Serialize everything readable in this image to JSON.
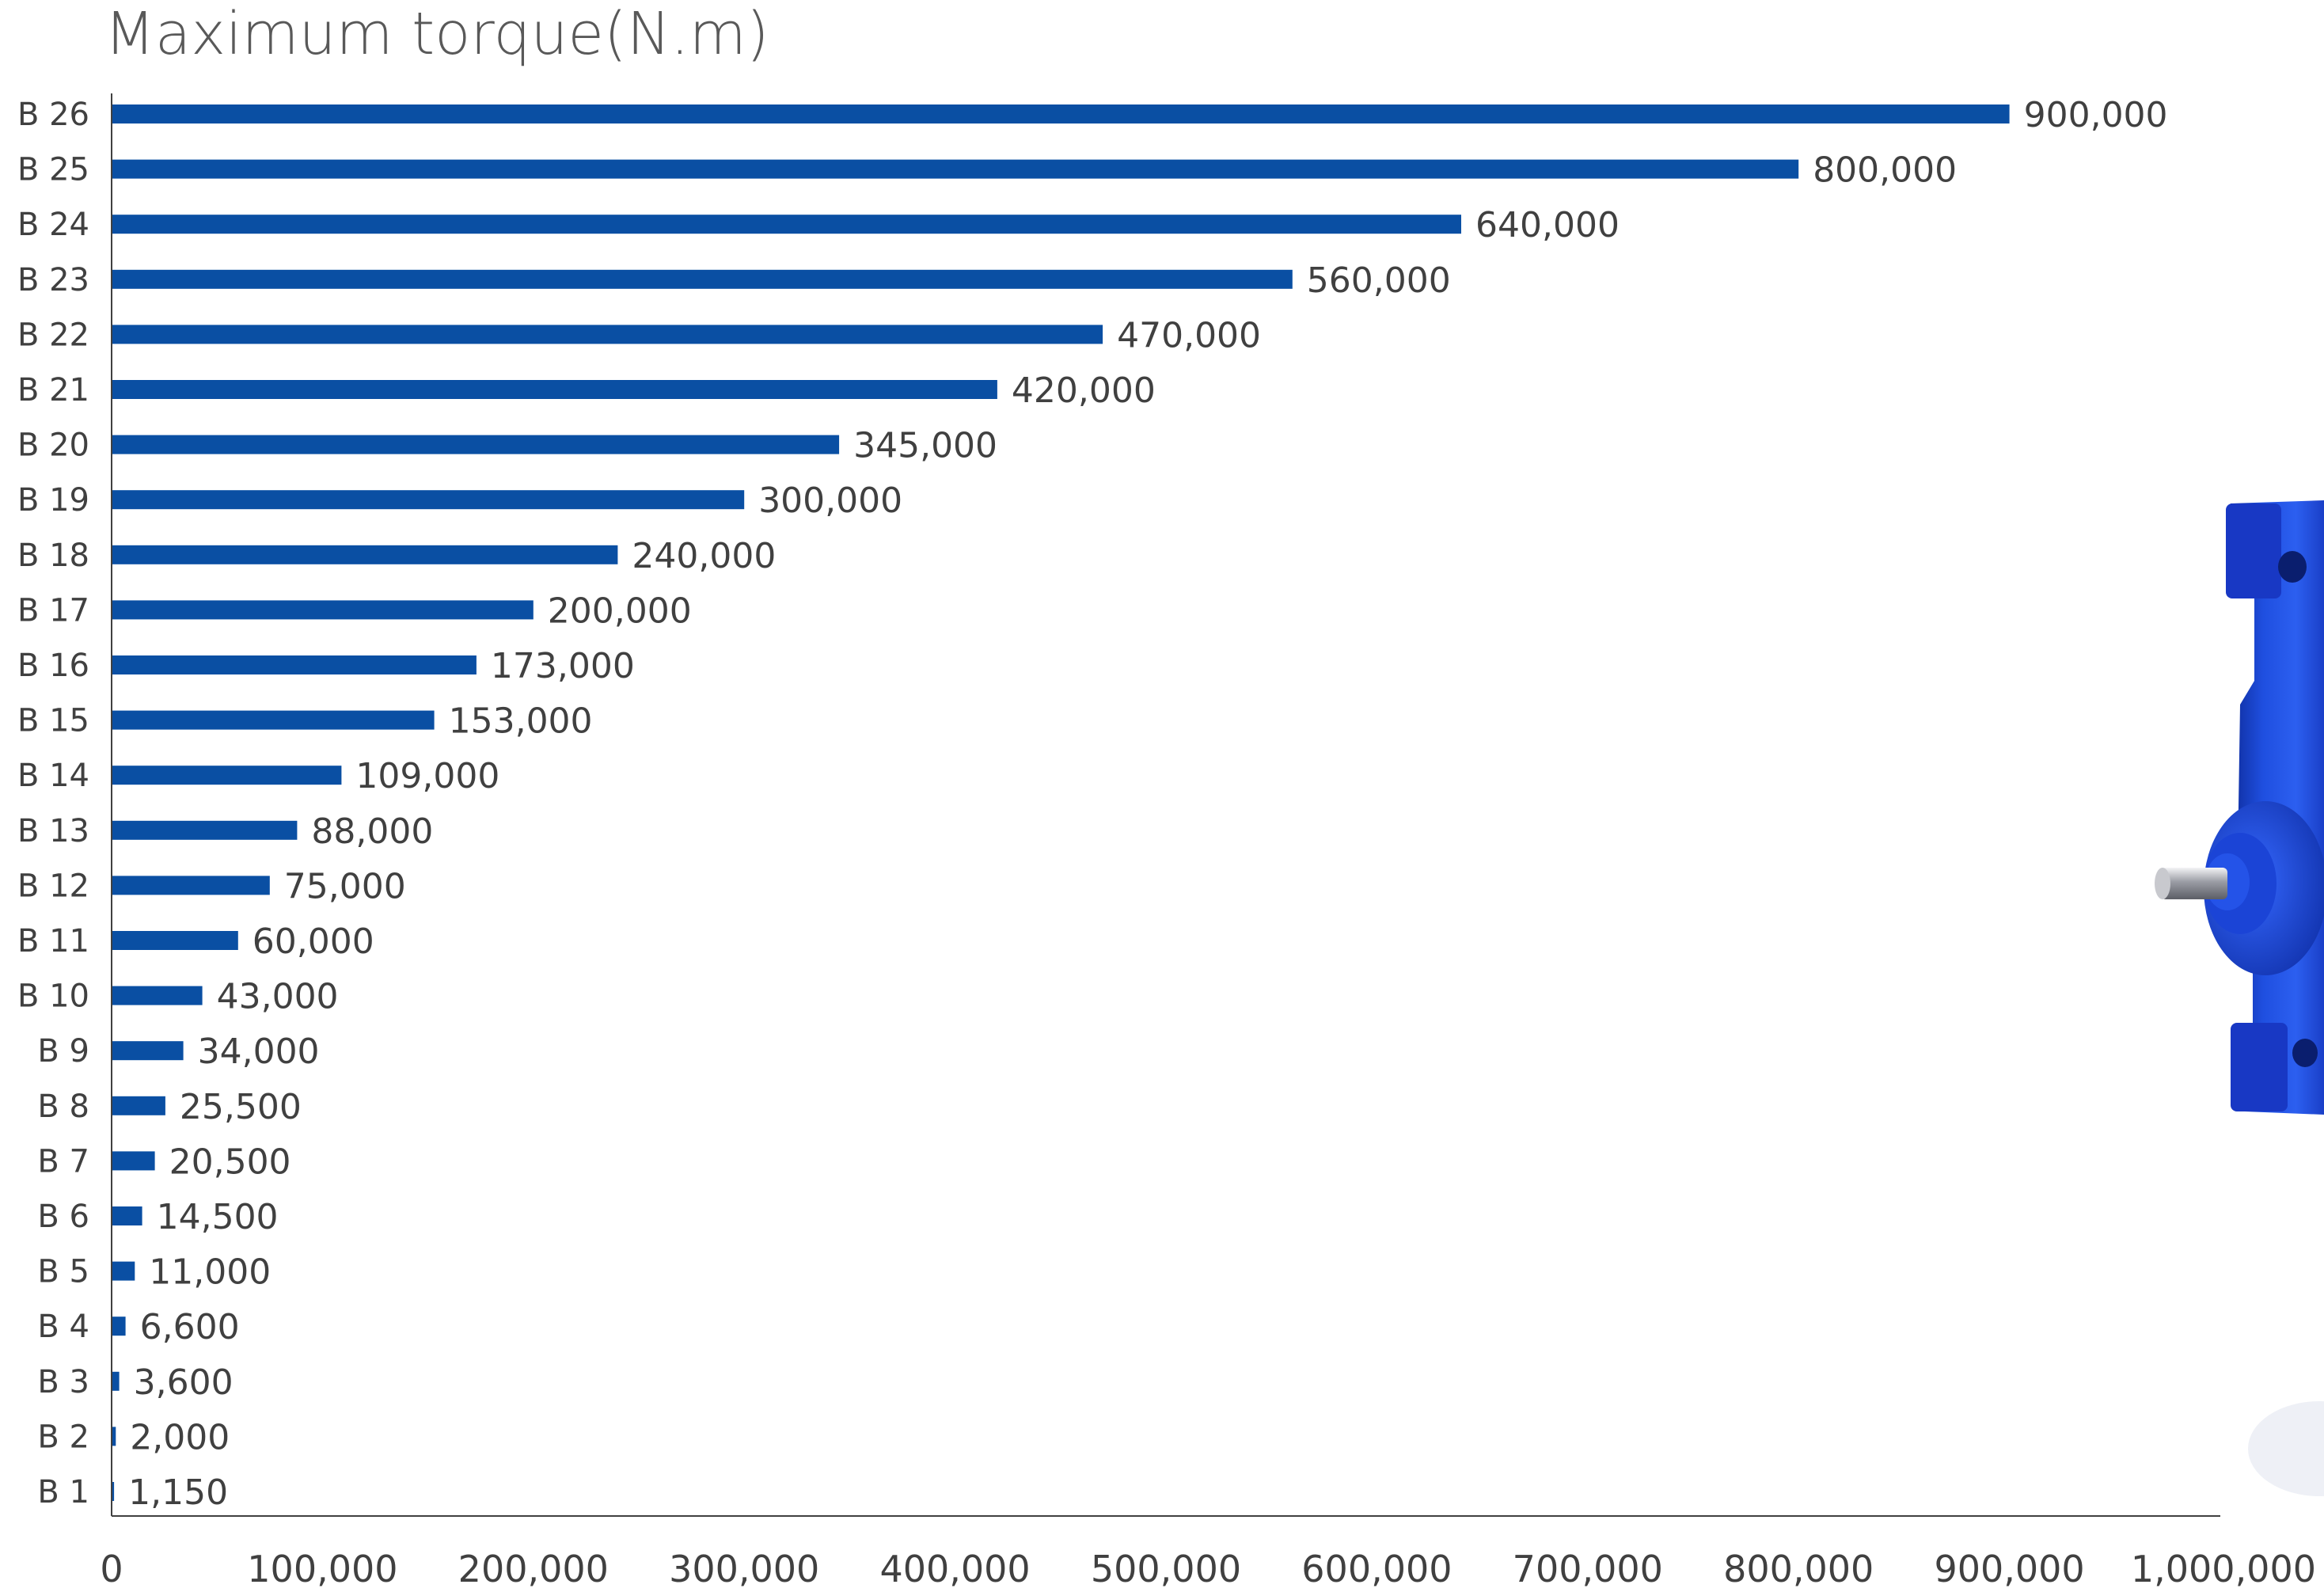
{
  "chart_data": {
    "type": "bar",
    "orientation": "horizontal",
    "title": "Maximum torque(N.m)",
    "xlabel": "",
    "ylabel": "",
    "categories": [
      "B 26",
      "B 25",
      "B 24",
      "B 23",
      "B 22",
      "B 21",
      "B 20",
      "B 19",
      "B 18",
      "B 17",
      "B 16",
      "B 15",
      "B 14",
      "B 13",
      "B 12",
      "B 11",
      "B 10",
      "B 9",
      "B 8",
      "B 7",
      "B 6",
      "B 5",
      "B 4",
      "B 3",
      "B 2",
      "B 1"
    ],
    "values": [
      900000,
      800000,
      640000,
      560000,
      470000,
      420000,
      345000,
      300000,
      240000,
      200000,
      173000,
      153000,
      109000,
      88000,
      75000,
      60000,
      43000,
      34000,
      25500,
      20500,
      14500,
      11000,
      6600,
      3600,
      2000,
      1150
    ],
    "value_labels": [
      "900,000",
      "800,000",
      "640,000",
      "560,000",
      "470,000",
      "420,000",
      "345,000",
      "300,000",
      "240,000",
      "200,000",
      "173,000",
      "153,000",
      "109,000",
      "88,000",
      "75,000",
      "60,000",
      "43,000",
      "34,000",
      "25,500",
      "20,500",
      "14,500",
      "11,000",
      "6,600",
      "3,600",
      "2,000",
      "1,150"
    ],
    "xticks": [
      0,
      100000,
      200000,
      300000,
      400000,
      500000,
      600000,
      700000,
      800000,
      900000,
      1000000
    ],
    "xtick_labels": [
      "0",
      "100,000",
      "200,000",
      "300,000",
      "400,000",
      "500,000",
      "600,000",
      "700,000",
      "800,000",
      "900,000",
      "1,000,000"
    ],
    "xlim": [
      0,
      1000000
    ],
    "grid": false,
    "legend": "none",
    "bar_color": "#0a4fa3",
    "text_color": "#404040",
    "title_color": "#595959",
    "axis_color": "#404040"
  },
  "product_image": {
    "icon": "blue-gearbox-image",
    "color": "#1b44d6"
  }
}
